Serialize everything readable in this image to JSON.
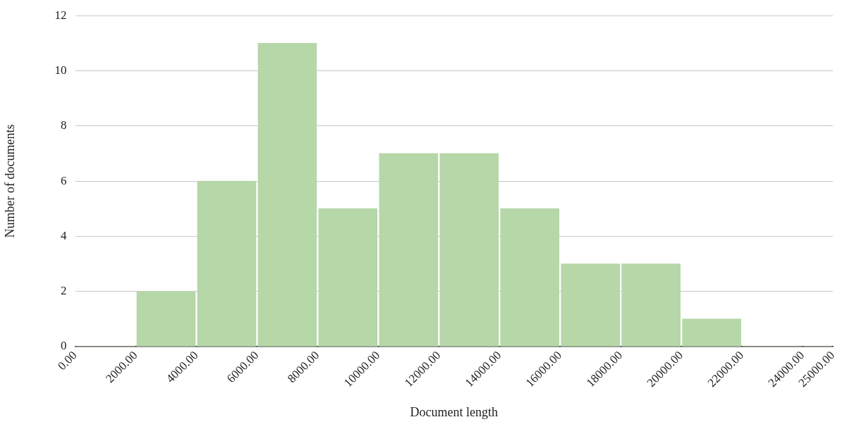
{
  "chart_data": {
    "type": "histogram",
    "xlabel": "Document length",
    "ylabel": "Number of documents",
    "bins": [
      0,
      2000,
      4000,
      6000,
      8000,
      10000,
      12000,
      14000,
      16000,
      18000,
      20000,
      22000,
      24000,
      25000
    ],
    "values": [
      0,
      2,
      6,
      11,
      5,
      7,
      7,
      5,
      3,
      3,
      1,
      0,
      0
    ],
    "color": "#b6d7a8",
    "xticks": [
      {
        "value": 0,
        "label": "0.00"
      },
      {
        "value": 2000,
        "label": "2000.00"
      },
      {
        "value": 4000,
        "label": "4000.00"
      },
      {
        "value": 6000,
        "label": "6000.00"
      },
      {
        "value": 8000,
        "label": "8000.00"
      },
      {
        "value": 10000,
        "label": "10000.00"
      },
      {
        "value": 12000,
        "label": "12000.00"
      },
      {
        "value": 14000,
        "label": "14000.00"
      },
      {
        "value": 16000,
        "label": "16000.00"
      },
      {
        "value": 18000,
        "label": "18000.00"
      },
      {
        "value": 20000,
        "label": "20000.00"
      },
      {
        "value": 22000,
        "label": "22000.00"
      },
      {
        "value": 24000,
        "label": "24000.00"
      },
      {
        "value": 25000,
        "label": "25000.00"
      }
    ],
    "xlim": [
      0,
      25000
    ],
    "ylim": [
      0,
      12
    ],
    "yticks": [
      0,
      2,
      4,
      6,
      8,
      10,
      12
    ],
    "grid": "y",
    "legend": false
  }
}
